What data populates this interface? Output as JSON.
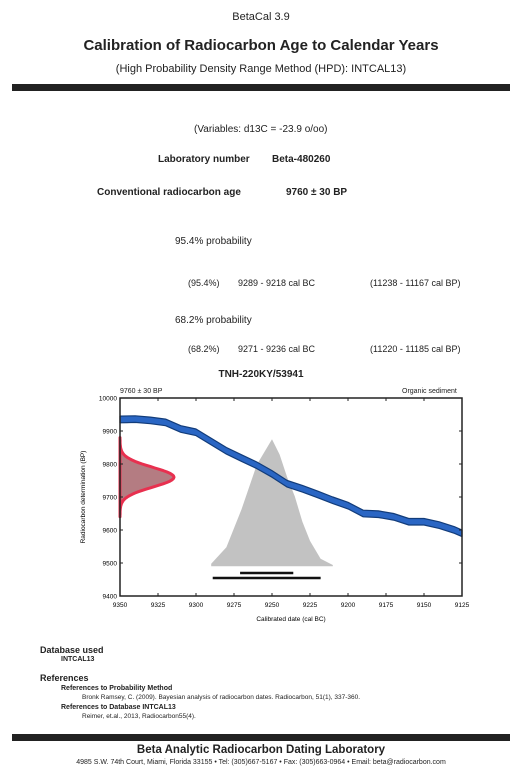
{
  "header": {
    "app": "BetaCal 3.9",
    "title": "Calibration of Radiocarbon Age to Calendar Years",
    "subtitle": "(High Probability Density Range Method (HPD): INTCAL13)"
  },
  "variables": "(Variables: d13C = -23.9 o/oo)",
  "lab": {
    "label": "Laboratory number",
    "value": "Beta-480260"
  },
  "age": {
    "label": "Conventional radiocarbon age",
    "value": "9760 ± 30 BP"
  },
  "prob95": {
    "heading": "95.4% probability",
    "pct": "(95.4%)",
    "range_bc": "9289 - 9218 cal  BC",
    "range_bp": "(11238 - 11167 cal  BP)"
  },
  "prob68": {
    "heading": "68.2% probability",
    "pct": "(68.2%)",
    "range_bc": "9271 - 9236 cal  BC",
    "range_bp": "(11220 - 11185 cal  BP)"
  },
  "chart": {
    "title": "TNH-220KY/53941",
    "left_note": "9760 ± 30 BP",
    "right_note": "Organic sediment",
    "ylabel": "Radiocarbon determination (BP)",
    "xlabel": "Calibrated date (cal BC)"
  },
  "chart_data": {
    "type": "line",
    "title": "TNH-220KY/53941",
    "xlabel": "Calibrated date (cal BC)",
    "ylabel": "Radiocarbon determination (BP)",
    "xlim": [
      9350,
      9125
    ],
    "ylim": [
      9400,
      10000
    ],
    "xticks": [
      9350,
      9325,
      9300,
      9275,
      9250,
      9225,
      9200,
      9175,
      9150,
      9125
    ],
    "yticks": [
      9400,
      9500,
      9600,
      9700,
      9800,
      9900,
      10000
    ],
    "calibration_curve": {
      "x": [
        9350,
        9340,
        9330,
        9320,
        9310,
        9300,
        9290,
        9280,
        9270,
        9260,
        9250,
        9240,
        9230,
        9220,
        9210,
        9200,
        9190,
        9180,
        9170,
        9160,
        9150,
        9140,
        9130,
        9125
      ],
      "y": [
        9935,
        9936,
        9932,
        9926,
        9906,
        9896,
        9868,
        9840,
        9818,
        9796,
        9770,
        9740,
        9725,
        9708,
        9690,
        9674,
        9650,
        9648,
        9640,
        9625,
        9625,
        9615,
        9600,
        9590
      ],
      "band": 10
    },
    "radiocarbon_probability": {
      "mean": 9760,
      "sigma": 30
    },
    "calibrated_distribution": {
      "x": [
        9290,
        9280,
        9270,
        9260,
        9255,
        9250,
        9245,
        9240,
        9235,
        9230,
        9225,
        9218,
        9210
      ],
      "density": [
        0.02,
        0.15,
        0.45,
        0.8,
        0.9,
        1.0,
        0.88,
        0.7,
        0.55,
        0.35,
        0.2,
        0.06,
        0.01
      ]
    },
    "ranges": {
      "p68": [
        9271,
        9236
      ],
      "p95": [
        9289,
        9218
      ]
    },
    "grid": false
  },
  "database": {
    "heading": "Database used",
    "name": "INTCAL13"
  },
  "references": {
    "heading": "References",
    "sub1": "References to Probability Method",
    "ref1": "Bronk Ramsey, C. (2009). Bayesian analysis of radiocarbon dates. Radiocarbon, 51(1), 337-360.",
    "sub2": "References to Database INTCAL13",
    "ref2": "Reimer, et.al., 2013, Radiocarbon55(4)."
  },
  "footer": {
    "name": "Beta Analytic Radiocarbon Dating Laboratory",
    "address": "4985 S.W. 74th Court, Miami, Florida 33155 • Tel: (305)667-5167 • Fax: (305)663-0964 • Email: beta@radiocarbon.com"
  },
  "colors": {
    "curve": "#2a66c4",
    "curve_edge": "#123c7a",
    "probability": "#e8304f",
    "probability_fill": "#b47c82",
    "calibrated": "#c2c2c2"
  }
}
